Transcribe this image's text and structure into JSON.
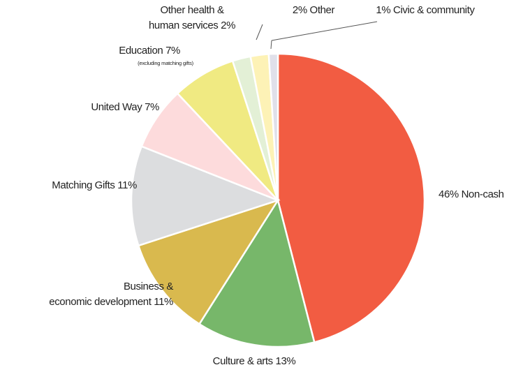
{
  "chart_data": {
    "type": "pie",
    "values": [
      46,
      13,
      11,
      11,
      7,
      7,
      2,
      2,
      1
    ],
    "value_labels": [
      [
        "46% Non-cash"
      ],
      [
        "Culture & arts 13%"
      ],
      [
        "Business &",
        "economic development 11%"
      ],
      [
        "Matching Gifts 11%"
      ],
      [
        "United Way 7%"
      ],
      [
        "Education 7%"
      ],
      [
        "Other health &",
        "human services 2%"
      ],
      [
        "2% Other"
      ],
      [
        "1% Civic & community"
      ]
    ],
    "annotations": [
      "(excluding matching gifts)"
    ],
    "colors": [
      "#f25c42",
      "#77b76a",
      "#d9b94e",
      "#dcdddf",
      "#fddbdc",
      "#f0ea82",
      "#e3f0d6",
      "#fdf2b6",
      "#e0e0ea"
    ]
  }
}
